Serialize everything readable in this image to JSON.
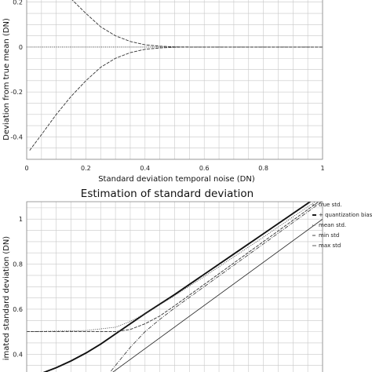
{
  "chart_data": [
    {
      "type": "line",
      "title": "",
      "xlabel": "Standard deviation temporal noise (DN)",
      "ylabel": "Deviation from true mean (DN)",
      "xlim": [
        0,
        1
      ],
      "ylim": [
        -0.5,
        0.22
      ],
      "xticks": [
        "0",
        "0.2",
        "0.4",
        "0.6",
        "0.8",
        "1"
      ],
      "yticks": [
        "0.2",
        "0",
        "-0.2",
        "-0.4"
      ],
      "grid": true,
      "series": [
        {
          "style": "dashed",
          "x": [
            0.15,
            0.2,
            0.25,
            0.3,
            0.35,
            0.4,
            0.45,
            0.5,
            0.55,
            0.6,
            0.7,
            0.8,
            1.0
          ],
          "y": [
            0.215,
            0.15,
            0.09,
            0.05,
            0.025,
            0.01,
            0.004,
            0.001,
            0,
            0,
            0,
            0,
            0
          ]
        },
        {
          "style": "dotted",
          "x": [
            0,
            0.2,
            0.4,
            0.6,
            0.8,
            1.0
          ],
          "y": [
            0,
            0,
            0,
            0,
            0,
            0
          ]
        },
        {
          "style": "dashed",
          "x": [
            0.01,
            0.05,
            0.1,
            0.15,
            0.2,
            0.25,
            0.3,
            0.35,
            0.4,
            0.45,
            0.5,
            0.55,
            0.6,
            0.7,
            0.8,
            1.0
          ],
          "y": [
            -0.46,
            -0.39,
            -0.3,
            -0.22,
            -0.15,
            -0.09,
            -0.05,
            -0.025,
            -0.01,
            -0.004,
            -0.001,
            0,
            0,
            0,
            0,
            0
          ]
        }
      ]
    },
    {
      "type": "line",
      "title": "Estimation of standard deviation",
      "xlabel": "",
      "ylabel": "imated standard deviation (DN)",
      "xlim": [
        0,
        1
      ],
      "ylim": [
        0.3,
        1.06
      ],
      "yticks": [
        "1",
        "0.8",
        "0.6",
        "0.4"
      ],
      "grid": true,
      "legend_position": "right",
      "series": [
        {
          "name": "true std.",
          "style": "thin",
          "x": [
            0.27,
            1.0
          ],
          "y": [
            0.3,
            1.0
          ]
        },
        {
          "name": "+ quantization bias",
          "style": "thick",
          "x": [
            0,
            0.05,
            0.1,
            0.15,
            0.2,
            0.25,
            0.3,
            0.35,
            0.4,
            0.5,
            0.6,
            0.7,
            0.8,
            0.9,
            1.0
          ],
          "y": [
            0.3,
            0.315,
            0.34,
            0.37,
            0.405,
            0.445,
            0.49,
            0.535,
            0.58,
            0.665,
            0.755,
            0.845,
            0.935,
            1.025,
            1.115
          ]
        },
        {
          "name": "mean std.",
          "style": "dotted",
          "x": [
            0.0,
            0.2,
            0.3,
            0.35,
            0.4,
            0.45,
            0.5,
            0.6,
            0.8,
            1.0
          ],
          "y": [
            0.5,
            0.505,
            0.52,
            0.545,
            0.58,
            0.62,
            0.66,
            0.745,
            0.92,
            1.1
          ]
        },
        {
          "name": "min std",
          "style": "dashed",
          "x": [
            0.0,
            0.3,
            0.35,
            0.4,
            0.45,
            0.5,
            0.6,
            0.8,
            1.0
          ],
          "y": [
            0.5,
            0.5,
            0.51,
            0.535,
            0.57,
            0.615,
            0.71,
            0.9,
            1.09
          ]
        },
        {
          "name": "max std",
          "style": "dashdot",
          "x": [
            0.27,
            0.3,
            0.35,
            0.4,
            0.45,
            0.5,
            0.6,
            0.8,
            1.0
          ],
          "y": [
            0.3,
            0.35,
            0.43,
            0.5,
            0.555,
            0.605,
            0.7,
            0.89,
            1.08
          ]
        }
      ]
    }
  ]
}
